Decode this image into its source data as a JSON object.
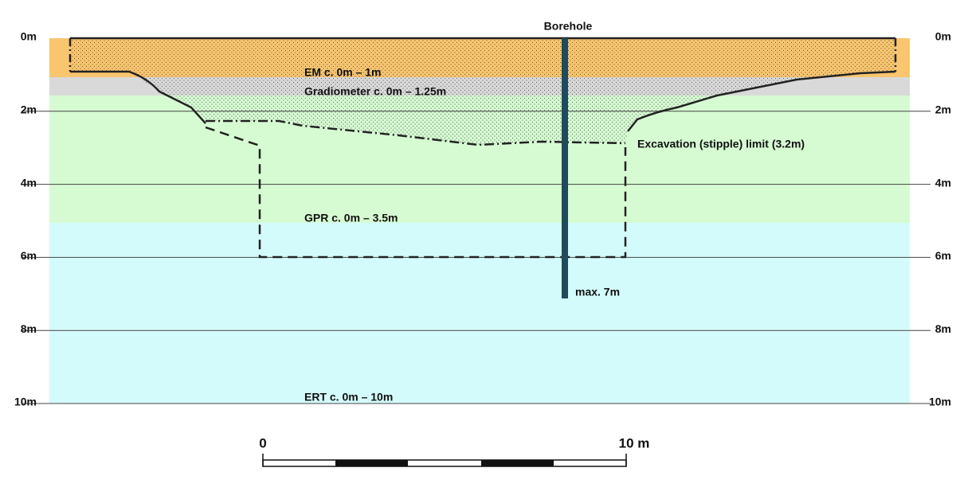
{
  "depth_labels": [
    "0m",
    "2m",
    "4m",
    "6m",
    "8m",
    "10m"
  ],
  "borehole": {
    "label": "Borehole",
    "max_label": "max. 7m"
  },
  "methods": {
    "em": "EM c. 0m – 1m",
    "gradiometer": "Gradiometer c. 0m – 1.25m",
    "gpr": "GPR c. 0m – 3.5m",
    "ert": "ERT c. 0m – 10m"
  },
  "excavation_label": "Excavation (stipple) limit (3.2m)",
  "scale_bar": {
    "start_label": "0",
    "end_label": "10 m"
  }
}
